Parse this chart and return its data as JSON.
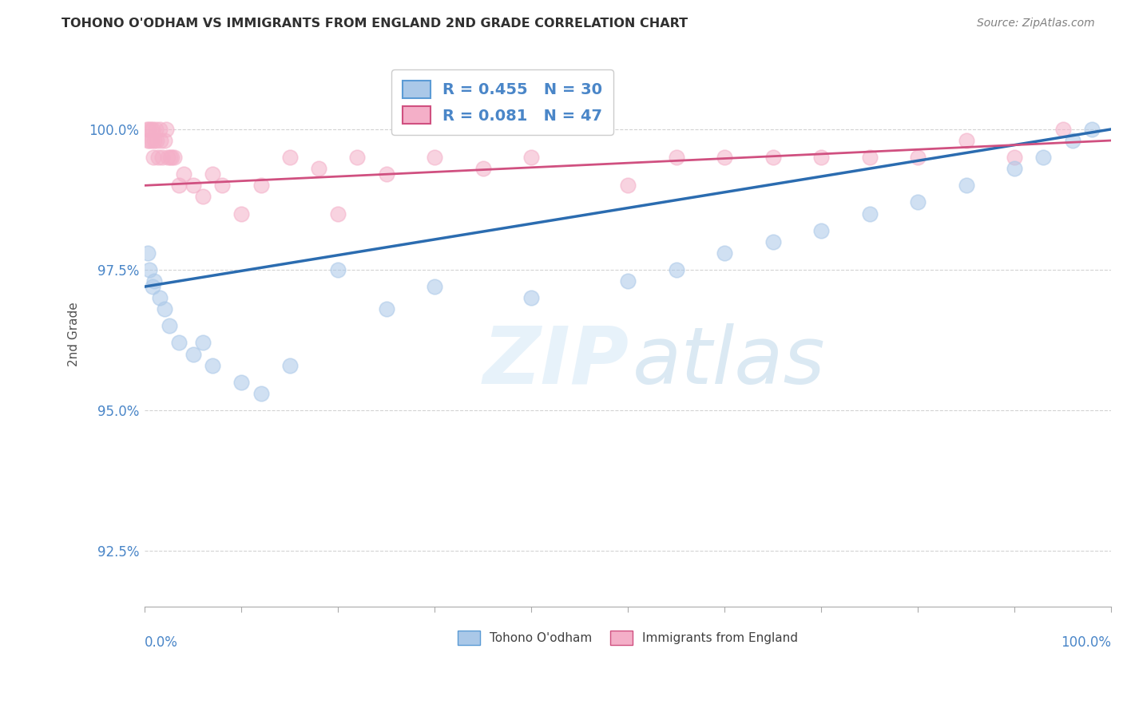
{
  "title": "TOHONO O'ODHAM VS IMMIGRANTS FROM ENGLAND 2ND GRADE CORRELATION CHART",
  "source": "Source: ZipAtlas.com",
  "ylabel": "2nd Grade",
  "xlim": [
    0,
    100
  ],
  "ylim": [
    91.5,
    101.2
  ],
  "yticks": [
    92.5,
    95.0,
    97.5,
    100.0
  ],
  "ytick_labels": [
    "92.5%",
    "95.0%",
    "97.5%",
    "100.0%"
  ],
  "legend_blue_label": "R = 0.455   N = 30",
  "legend_pink_label": "R = 0.081   N = 47",
  "blue_color": "#aac8e8",
  "pink_color": "#f4afc8",
  "trend_blue_color": "#2b6cb0",
  "trend_pink_color": "#d05080",
  "background_color": "#ffffff",
  "grid_color": "#c8c8c8",
  "title_color": "#303030",
  "axis_label_color": "#4a86c8",
  "tohono_x": [
    0.3,
    0.5,
    0.8,
    1.0,
    1.5,
    2.0,
    2.5,
    3.5,
    5.0,
    7.0,
    10.0,
    15.0,
    20.0,
    30.0,
    40.0,
    50.0,
    55.0,
    60.0,
    65.0,
    70.0,
    75.0,
    80.0,
    85.0,
    90.0,
    93.0,
    96.0,
    98.0,
    6.0,
    12.0,
    25.0
  ],
  "tohono_y": [
    97.8,
    97.5,
    97.2,
    97.3,
    97.0,
    96.8,
    96.5,
    96.2,
    96.0,
    95.8,
    95.5,
    95.8,
    97.5,
    97.2,
    97.0,
    97.3,
    97.5,
    97.8,
    98.0,
    98.2,
    98.5,
    98.7,
    99.0,
    99.3,
    99.5,
    99.8,
    100.0,
    96.2,
    95.3,
    96.8
  ],
  "england_x": [
    0.2,
    0.3,
    0.4,
    0.5,
    0.6,
    0.7,
    0.8,
    0.9,
    1.0,
    1.1,
    1.2,
    1.4,
    1.5,
    1.6,
    1.8,
    2.0,
    2.2,
    2.4,
    2.6,
    2.8,
    3.0,
    3.5,
    4.0,
    5.0,
    6.0,
    7.0,
    8.0,
    10.0,
    12.0,
    15.0,
    18.0,
    20.0,
    22.0,
    25.0,
    30.0,
    35.0,
    40.0,
    50.0,
    55.0,
    60.0,
    65.0,
    70.0,
    75.0,
    80.0,
    85.0,
    90.0,
    95.0
  ],
  "england_y": [
    100.0,
    99.8,
    100.0,
    99.8,
    100.0,
    99.8,
    100.0,
    99.5,
    99.8,
    100.0,
    99.8,
    99.5,
    100.0,
    99.8,
    99.5,
    99.8,
    100.0,
    99.5,
    99.5,
    99.5,
    99.5,
    99.0,
    99.2,
    99.0,
    98.8,
    99.2,
    99.0,
    98.5,
    99.0,
    99.5,
    99.3,
    98.5,
    99.5,
    99.2,
    99.5,
    99.3,
    99.5,
    99.0,
    99.5,
    99.5,
    99.5,
    99.5,
    99.5,
    99.5,
    99.8,
    99.5,
    100.0
  ]
}
